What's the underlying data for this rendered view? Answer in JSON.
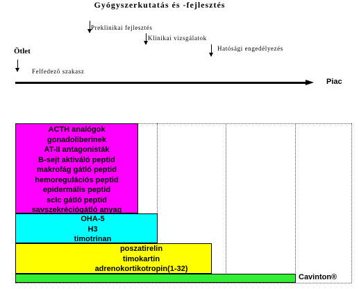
{
  "title": "Gyógyszerkutatás és -fejlesztés",
  "milestones": {
    "preclinical": "Preklinikai fejlesztés",
    "clinical": "Klinikai vizsgálatok",
    "regulatory": "Hatósági engedélyezés",
    "idea": "Ötlet",
    "discovery": "Felfedező szakasz",
    "market": "Piac"
  },
  "colors": {
    "magenta": "#ff00ff",
    "cyan": "#00ffff",
    "yellow": "#ffff00",
    "green": "#33ee33"
  },
  "blocks": {
    "magenta": [
      "ACTH analógok",
      "gonadoliberinek",
      "AT-II antagonisták",
      "B-sejt aktiváló peptid",
      "makrofág gátló peptid",
      "hemoregulációs peptid",
      "epidermális peptid",
      "sclc gátló peptid",
      "savszekréciógátló anyag"
    ],
    "cyan": [
      "OHA-5",
      "H3",
      "timotrinan"
    ],
    "yellow": [
      "poszatirelin",
      "timokartin",
      "adrenokortikotropin(1-32)"
    ],
    "green": "Cavinton®"
  }
}
